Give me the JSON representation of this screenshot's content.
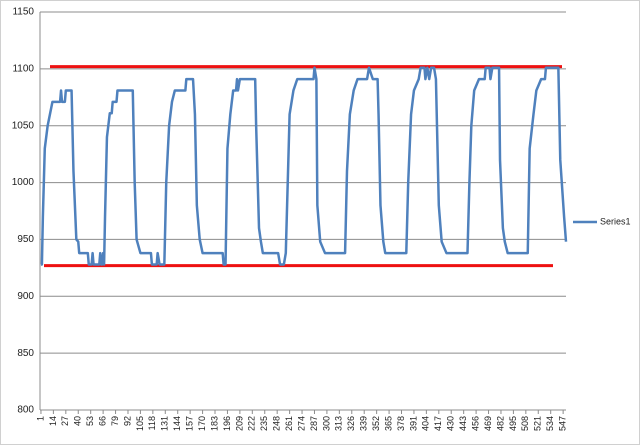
{
  "chart_data": {
    "type": "line",
    "x": [
      1,
      2,
      3,
      5,
      8,
      13,
      21,
      22,
      23,
      26,
      27,
      33,
      35,
      38,
      40,
      41,
      50,
      51,
      54,
      55,
      56,
      62,
      63,
      64,
      65,
      66,
      67,
      68,
      70,
      73,
      75,
      76,
      80,
      81,
      97,
      99,
      101,
      105,
      116,
      117,
      122,
      123,
      125,
      130,
      132,
      135,
      138,
      141,
      152,
      153,
      160,
      162,
      164,
      167,
      170,
      191,
      192,
      194,
      196,
      199,
      202,
      205,
      206,
      207,
      209,
      225,
      226,
      229,
      231,
      233,
      249,
      251,
      255,
      257,
      261,
      265,
      269,
      286,
      287,
      289,
      290,
      293,
      298,
      319,
      321,
      324,
      328,
      332,
      342,
      344,
      348,
      353,
      354,
      356,
      359,
      361,
      383,
      385,
      388,
      391,
      396,
      398,
      402,
      403,
      405,
      407,
      409,
      412,
      414,
      417,
      420,
      425,
      447,
      449,
      451,
      454,
      459,
      465,
      466,
      470,
      471,
      473,
      480,
      481,
      484,
      486,
      489,
      510,
      512,
      516,
      519,
      524,
      528,
      529,
      542,
      544,
      548,
      550
    ],
    "series": [
      {
        "name": "Series1",
        "color": "#4f81bd",
        "values": [
          928,
          928,
          970,
          1030,
          1050,
          1071,
          1071,
          1081,
          1071,
          1071,
          1081,
          1081,
          1010,
          950,
          948,
          938,
          938,
          928,
          928,
          938,
          928,
          928,
          938,
          928,
          928,
          938,
          928,
          970,
          1040,
          1061,
          1061,
          1071,
          1071,
          1081,
          1081,
          1000,
          950,
          938,
          938,
          928,
          928,
          938,
          928,
          928,
          1000,
          1050,
          1071,
          1081,
          1081,
          1091,
          1091,
          1060,
          980,
          950,
          938,
          938,
          928,
          928,
          1030,
          1060,
          1081,
          1081,
          1091,
          1081,
          1091,
          1091,
          1050,
          960,
          948,
          938,
          938,
          928,
          928,
          938,
          1060,
          1081,
          1091,
          1091,
          1101,
          1091,
          980,
          948,
          938,
          938,
          1010,
          1060,
          1081,
          1091,
          1091,
          1101,
          1091,
          1091,
          1060,
          980,
          948,
          938,
          938,
          1000,
          1060,
          1081,
          1091,
          1101,
          1101,
          1091,
          1101,
          1091,
          1101,
          1101,
          1091,
          980,
          948,
          938,
          938,
          1000,
          1050,
          1081,
          1091,
          1091,
          1101,
          1101,
          1091,
          1101,
          1101,
          1020,
          960,
          948,
          938,
          938,
          1030,
          1060,
          1081,
          1091,
          1091,
          1101,
          1101,
          1020,
          970,
          948
        ]
      }
    ],
    "reference_lines": [
      {
        "value": 1102,
        "color": "#ee1111"
      },
      {
        "value": 927,
        "color": "#ee1111"
      }
    ],
    "xlim": [
      0,
      550
    ],
    "xticks": [
      1,
      14,
      27,
      40,
      53,
      66,
      79,
      92,
      105,
      118,
      131,
      144,
      157,
      170,
      183,
      196,
      209,
      222,
      235,
      248,
      261,
      274,
      287,
      300,
      313,
      326,
      339,
      352,
      365,
      378,
      391,
      404,
      417,
      430,
      443,
      456,
      469,
      482,
      495,
      508,
      521,
      534,
      547
    ],
    "ylim": [
      800,
      1150
    ],
    "yticks": [
      800,
      850,
      900,
      950,
      1000,
      1050,
      1100,
      1150
    ],
    "grid": true,
    "legend": "right"
  }
}
